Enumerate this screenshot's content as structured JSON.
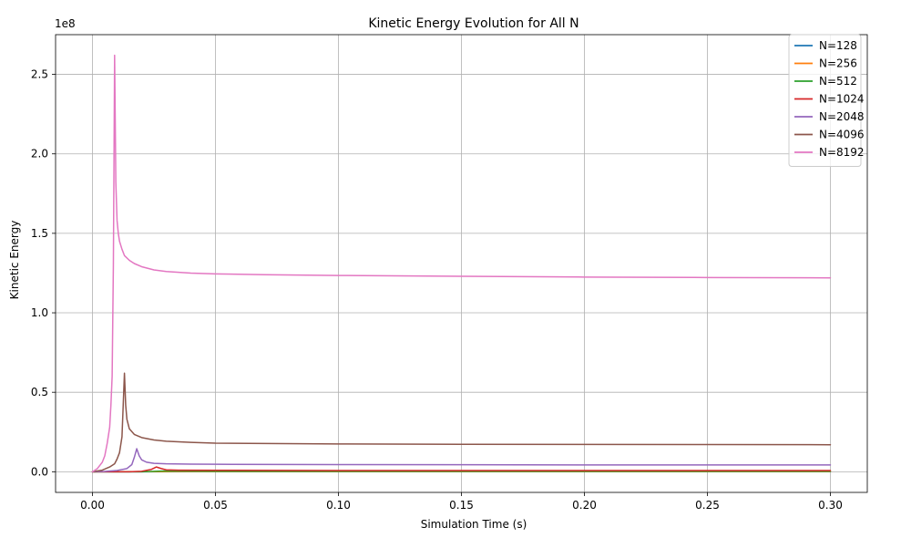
{
  "chart_data": {
    "type": "line",
    "title": "Kinetic Energy Evolution for All N",
    "xlabel": "Simulation Time (s)",
    "ylabel": "Kinetic Energy",
    "y_offset_label": "1e8",
    "xlim": [
      -0.015,
      0.315
    ],
    "ylim": [
      -0.13,
      2.75
    ],
    "x_ticks": [
      0.0,
      0.05,
      0.1,
      0.15,
      0.2,
      0.25,
      0.3
    ],
    "x_tick_labels": [
      "0.00",
      "0.05",
      "0.10",
      "0.15",
      "0.20",
      "0.25",
      "0.30"
    ],
    "y_ticks": [
      0.0,
      0.5,
      1.0,
      1.5,
      2.0,
      2.5
    ],
    "y_tick_labels": [
      "0.0",
      "0.5",
      "1.0",
      "1.5",
      "2.0",
      "2.5"
    ],
    "grid": true,
    "legend_position": "top-right",
    "series": [
      {
        "name": "N=128",
        "color": "#1f77b4",
        "x": [
          0.0,
          0.02,
          0.04,
          0.045,
          0.05,
          0.06,
          0.1,
          0.15,
          0.2,
          0.25,
          0.3
        ],
        "y": [
          0.0,
          0.0,
          0.0005,
          0.0015,
          0.001,
          0.0008,
          0.0007,
          0.0007,
          0.0007,
          0.0007,
          0.0007
        ]
      },
      {
        "name": "N=256",
        "color": "#ff7f0e",
        "x": [
          0.0,
          0.03,
          0.035,
          0.04,
          0.05,
          0.1,
          0.15,
          0.2,
          0.25,
          0.3
        ],
        "y": [
          0.0,
          0.0005,
          0.002,
          0.001,
          0.0015,
          0.0015,
          0.0015,
          0.0015,
          0.0015,
          0.0015
        ]
      },
      {
        "name": "N=512",
        "color": "#2ca02c",
        "x": [
          0.0,
          0.02,
          0.028,
          0.03,
          0.035,
          0.05,
          0.1,
          0.15,
          0.2,
          0.25,
          0.3
        ],
        "y": [
          0.0,
          0.0,
          0.004,
          0.005,
          0.004,
          0.003,
          0.003,
          0.003,
          0.003,
          0.003,
          0.003
        ]
      },
      {
        "name": "N=1024",
        "color": "#d62728",
        "x": [
          0.0,
          0.015,
          0.02,
          0.024,
          0.026,
          0.028,
          0.03,
          0.035,
          0.05,
          0.1,
          0.15,
          0.2,
          0.25,
          0.3
        ],
        "y": [
          0.0,
          0.0,
          0.003,
          0.015,
          0.03,
          0.02,
          0.012,
          0.01,
          0.009,
          0.008,
          0.008,
          0.008,
          0.008,
          0.008
        ]
      },
      {
        "name": "N=2048",
        "color": "#9467bd",
        "x": [
          0.0,
          0.005,
          0.01,
          0.014,
          0.016,
          0.017,
          0.018,
          0.019,
          0.02,
          0.022,
          0.025,
          0.03,
          0.04,
          0.05,
          0.1,
          0.15,
          0.2,
          0.25,
          0.3
        ],
        "y": [
          0.0,
          0.002,
          0.008,
          0.02,
          0.045,
          0.09,
          0.145,
          0.1,
          0.075,
          0.06,
          0.053,
          0.05,
          0.048,
          0.047,
          0.045,
          0.044,
          0.043,
          0.043,
          0.043
        ]
      },
      {
        "name": "N=4096",
        "color": "#8c564b",
        "x": [
          0.0,
          0.004,
          0.007,
          0.009,
          0.01,
          0.011,
          0.012,
          0.0125,
          0.013,
          0.0135,
          0.014,
          0.015,
          0.017,
          0.02,
          0.025,
          0.03,
          0.04,
          0.05,
          0.1,
          0.15,
          0.2,
          0.25,
          0.3
        ],
        "y": [
          0.0,
          0.01,
          0.03,
          0.05,
          0.08,
          0.12,
          0.22,
          0.42,
          0.62,
          0.42,
          0.33,
          0.27,
          0.235,
          0.215,
          0.2,
          0.192,
          0.185,
          0.18,
          0.175,
          0.173,
          0.172,
          0.171,
          0.17
        ]
      },
      {
        "name": "N=8192",
        "color": "#e377c2",
        "x": [
          0.0,
          0.002,
          0.004,
          0.005,
          0.006,
          0.007,
          0.0075,
          0.008,
          0.0085,
          0.009,
          0.0095,
          0.01,
          0.0105,
          0.011,
          0.012,
          0.013,
          0.015,
          0.017,
          0.02,
          0.025,
          0.03,
          0.04,
          0.05,
          0.07,
          0.1,
          0.15,
          0.2,
          0.25,
          0.3
        ],
        "y": [
          0.0,
          0.02,
          0.06,
          0.1,
          0.18,
          0.28,
          0.42,
          0.6,
          1.3,
          2.62,
          1.82,
          1.58,
          1.5,
          1.45,
          1.4,
          1.36,
          1.33,
          1.31,
          1.29,
          1.27,
          1.26,
          1.25,
          1.245,
          1.24,
          1.235,
          1.23,
          1.225,
          1.222,
          1.22
        ]
      }
    ]
  }
}
